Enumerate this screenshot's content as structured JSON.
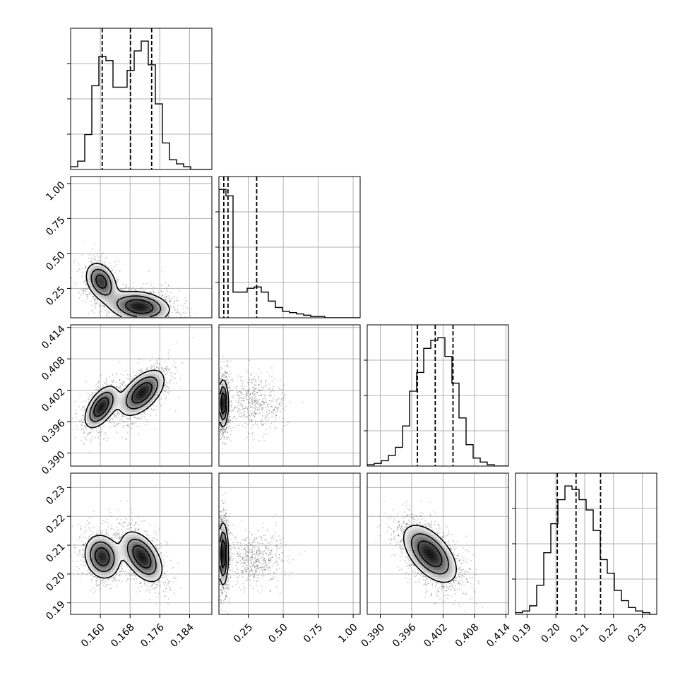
{
  "chart_data": {
    "type": "corner",
    "grid": true,
    "background": "#ffffff",
    "colors": {
      "line": "#000000",
      "grid": "#b0b0b0",
      "points": "#000000"
    },
    "variables": [
      {
        "range": [
          0.152,
          0.19
        ],
        "ticks": [
          0.16,
          0.168,
          0.176,
          0.184
        ],
        "tick_labels": [
          "0.160",
          "0.168",
          "0.176",
          "0.184"
        ],
        "quantiles": [
          0.1605,
          0.1681,
          0.1738
        ]
      },
      {
        "range": [
          0.04,
          1.05
        ],
        "ticks": [
          0.25,
          0.5,
          0.75,
          1.0
        ],
        "tick_labels": [
          "0.25",
          "0.50",
          "0.75",
          "1.00"
        ],
        "quantiles": [
          0.075,
          0.105,
          0.31
        ]
      },
      {
        "range": [
          0.3875,
          0.4145
        ],
        "ticks": [
          0.39,
          0.396,
          0.402,
          0.408,
          0.414
        ],
        "tick_labels": [
          "0.390",
          "0.396",
          "0.402",
          "0.408",
          "0.414"
        ],
        "quantiles": [
          0.3971,
          0.4005,
          0.4039
        ]
      },
      {
        "range": [
          0.186,
          0.235
        ],
        "ticks": [
          0.19,
          0.2,
          0.21,
          0.22,
          0.23
        ],
        "tick_labels": [
          "0.19",
          "0.20",
          "0.21",
          "0.22",
          "0.23"
        ],
        "quantiles": [
          0.2005,
          0.207,
          0.2155
        ]
      }
    ],
    "histograms": [
      {
        "bins": [
          0.152,
          0.1539,
          0.1558,
          0.1577,
          0.1596,
          0.1615,
          0.1634,
          0.1653,
          0.1672,
          0.1691,
          0.171,
          0.1729,
          0.1748,
          0.1767,
          0.1786,
          0.1805,
          0.1824,
          0.1843,
          0.1862,
          0.1881,
          0.19
        ],
        "counts": [
          2,
          6,
          25,
          60,
          81,
          78,
          59,
          59,
          71,
          85,
          92,
          75,
          47,
          19,
          7,
          4,
          2,
          0,
          0,
          0
        ]
      },
      {
        "bins": [
          0.04,
          0.0905,
          0.141,
          0.1915,
          0.242,
          0.2925,
          0.343,
          0.3935,
          0.444,
          0.4945,
          0.545,
          0.5955,
          0.646,
          0.6965,
          0.747,
          0.7975,
          0.848,
          0.8985,
          0.949,
          0.9995,
          1.05
        ],
        "counts": [
          100,
          95,
          20,
          20,
          23,
          24,
          20,
          13,
          8,
          5,
          4,
          3,
          2,
          1,
          1,
          0,
          0,
          0,
          0,
          0
        ]
      },
      {
        "bins": [
          0.3875,
          0.38885,
          0.3902,
          0.39155,
          0.3929,
          0.39425,
          0.3956,
          0.39695,
          0.3983,
          0.39965,
          0.401,
          0.40235,
          0.4037,
          0.40505,
          0.4064,
          0.40775,
          0.4091,
          0.41045,
          0.4118,
          0.41315,
          0.4145
        ],
        "counts": [
          1,
          2,
          4,
          8,
          14,
          30,
          56,
          70,
          88,
          94,
          96,
          82,
          62,
          36,
          16,
          6,
          3,
          1,
          0,
          0
        ]
      },
      {
        "bins": [
          0.186,
          0.18845,
          0.1909,
          0.19335,
          0.1958,
          0.19825,
          0.2007,
          0.20315,
          0.2056,
          0.20805,
          0.2105,
          0.21295,
          0.2154,
          0.21785,
          0.2203,
          0.22275,
          0.2252,
          0.22765,
          0.2301,
          0.23255,
          0.235
        ],
        "counts": [
          1,
          2,
          5,
          17,
          36,
          53,
          67,
          75,
          73,
          67,
          61,
          49,
          32,
          24,
          14,
          8,
          4,
          2,
          1,
          0
        ]
      }
    ],
    "pairs": [
      {
        "row": 1,
        "col": 0,
        "components": [
          {
            "mean": [
              0.1602,
              0.3
            ],
            "sd": [
              0.0023,
              0.075
            ],
            "rho": -0.3,
            "w": 0.35
          },
          {
            "mean": [
              0.1705,
              0.12
            ],
            "sd": [
              0.0045,
              0.06
            ],
            "rho": -0.2,
            "w": 0.65
          }
        ]
      },
      {
        "row": 2,
        "col": 0,
        "components": [
          {
            "mean": [
              0.1602,
              0.3988
            ],
            "sd": [
              0.0024,
              0.0022
            ],
            "rho": 0.55,
            "w": 0.4
          },
          {
            "mean": [
              0.1712,
              0.4015
            ],
            "sd": [
              0.0033,
              0.0024
            ],
            "rho": 0.55,
            "w": 0.6
          }
        ]
      },
      {
        "row": 3,
        "col": 0,
        "components": [
          {
            "mean": [
              0.1605,
              0.206
            ],
            "sd": [
              0.0026,
              0.0042
            ],
            "rho": -0.15,
            "w": 0.45
          },
          {
            "mean": [
              0.1712,
              0.206
            ],
            "sd": [
              0.003,
              0.0048
            ],
            "rho": -0.5,
            "w": 0.55
          }
        ]
      },
      {
        "row": 2,
        "col": 1,
        "components": [
          {
            "mean": [
              0.07,
              0.3995
            ],
            "sd": [
              0.02,
              0.0025
            ],
            "rho": 0.0,
            "w": 0.7
          },
          {
            "mean": [
              0.3,
              0.3995
            ],
            "sd": [
              0.09,
              0.0025
            ],
            "rho": -0.1,
            "w": 0.3
          }
        ]
      },
      {
        "row": 3,
        "col": 1,
        "components": [
          {
            "mean": [
              0.07,
              0.207
            ],
            "sd": [
              0.02,
              0.006
            ],
            "rho": 0.0,
            "w": 0.7
          },
          {
            "mean": [
              0.3,
              0.205
            ],
            "sd": [
              0.09,
              0.004
            ],
            "rho": 0.0,
            "w": 0.3
          }
        ]
      },
      {
        "row": 3,
        "col": 2,
        "components": [
          {
            "mean": [
              0.3995,
              0.207
            ],
            "sd": [
              0.0028,
              0.0055
            ],
            "rho": -0.55,
            "w": 1.0
          }
        ]
      }
    ]
  }
}
